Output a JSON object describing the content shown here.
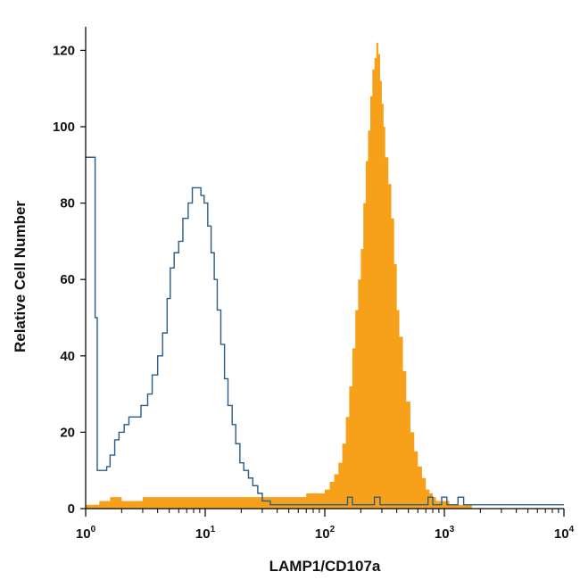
{
  "chart_data": {
    "type": "area",
    "title": "",
    "xlabel": "LAMP1/CD107a",
    "ylabel": "Relative Cell Number",
    "x_scale": "log",
    "xlim": [
      1,
      10000
    ],
    "ylim": [
      0,
      125
    ],
    "grid": false,
    "legend": "none",
    "x_ticks": [
      {
        "base": "10",
        "exp": "0",
        "value": 1
      },
      {
        "base": "10",
        "exp": "1",
        "value": 10
      },
      {
        "base": "10",
        "exp": "2",
        "value": 100
      },
      {
        "base": "10",
        "exp": "3",
        "value": 1000
      },
      {
        "base": "10",
        "exp": "4",
        "value": 10000
      }
    ],
    "y_ticks": [
      "0",
      "20",
      "40",
      "60",
      "80",
      "100",
      "120"
    ],
    "series": [
      {
        "style": "outline",
        "color": "#2b5c86",
        "x": [
          1.0,
          1.15,
          1.2,
          1.25,
          1.35,
          1.5,
          1.6,
          1.75,
          1.9,
          2.1,
          2.3,
          2.6,
          2.9,
          3.3,
          3.6,
          4.0,
          4.4,
          4.8,
          5.1,
          5.5,
          6.0,
          6.5,
          7.2,
          7.8,
          8.5,
          9.2,
          9.8,
          10.5,
          11.2,
          11.9,
          12.6,
          13.5,
          14.5,
          15.5,
          16.8,
          18.0,
          19.5,
          21.0,
          23.0,
          25.0,
          27.5,
          30.0,
          35.0,
          45.0,
          60.0,
          80.0,
          100.0,
          120.0,
          140.0,
          155.0,
          170.0,
          200.0,
          235.0,
          260.0,
          290.0,
          350.0,
          450.0,
          600.0,
          730.0,
          800.0,
          880.0,
          950.0,
          1050.0,
          1150.0,
          1300.0,
          1450.0,
          1600.0,
          2000.0,
          3000.0,
          5000.0,
          7000.0,
          10000.0
        ],
        "y": [
          92,
          92,
          50,
          10,
          10,
          11,
          14,
          18,
          20,
          22,
          24,
          24,
          27,
          30,
          35,
          40,
          46,
          55,
          63,
          67,
          70,
          76,
          80,
          84,
          84,
          82,
          80,
          74,
          67,
          60,
          52,
          43,
          34,
          27,
          22,
          17,
          12,
          10,
          8,
          6,
          4,
          2,
          1,
          1,
          1,
          1,
          1,
          1,
          1,
          3,
          1,
          1,
          1,
          3,
          1,
          1,
          1,
          1,
          3,
          1,
          1,
          3,
          1,
          1,
          3,
          1,
          1,
          1,
          1,
          1,
          1,
          1
        ]
      },
      {
        "style": "filled",
        "color": "#f7a11a",
        "x": [
          1.0,
          1.3,
          1.6,
          2.0,
          3.0,
          5.0,
          10.0,
          20.0,
          40.0,
          55.0,
          70.0,
          85.0,
          100.0,
          110.0,
          120.0,
          130.0,
          140.0,
          150.0,
          160.0,
          170.0,
          180.0,
          190.0,
          200.0,
          210.0,
          220.0,
          230.0,
          240.0,
          250.0,
          260.0,
          270.0,
          280.0,
          290.0,
          300.0,
          310.0,
          320.0,
          340.0,
          360.0,
          380.0,
          400.0,
          420.0,
          450.0,
          480.0,
          520.0,
          560.0,
          600.0,
          650.0,
          700.0,
          750.0,
          800.0,
          850.0,
          900.0,
          1000.0,
          1100.0,
          1200.0,
          1300.0,
          1500.0,
          1700.0
        ],
        "y": [
          1,
          2,
          3,
          2,
          3,
          3,
          3,
          3,
          3,
          3,
          4,
          4,
          5,
          7,
          9,
          12,
          17,
          24,
          32,
          42,
          52,
          60,
          68,
          80,
          91,
          99,
          108,
          115,
          118,
          122,
          119,
          112,
          106,
          100,
          92,
          85,
          76,
          64,
          52,
          45,
          36,
          28,
          20,
          15,
          11,
          8,
          5,
          4,
          3,
          2,
          2,
          2,
          1,
          1,
          1,
          1,
          0
        ]
      }
    ]
  }
}
